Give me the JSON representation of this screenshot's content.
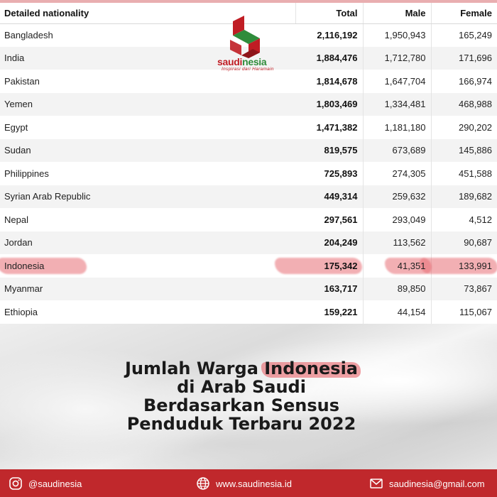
{
  "table": {
    "headers": {
      "name": "Detailed nationality",
      "total": "Total",
      "male": "Male",
      "female": "Female"
    },
    "rows": [
      {
        "name": "Bangladesh",
        "total": "2,116,192",
        "male": "1,950,943",
        "female": "165,249"
      },
      {
        "name": "India",
        "total": "1,884,476",
        "male": "1,712,780",
        "female": "171,696"
      },
      {
        "name": "Pakistan",
        "total": "1,814,678",
        "male": "1,647,704",
        "female": "166,974"
      },
      {
        "name": "Yemen",
        "total": "1,803,469",
        "male": "1,334,481",
        "female": "468,988"
      },
      {
        "name": "Egypt",
        "total": "1,471,382",
        "male": "1,181,180",
        "female": "290,202"
      },
      {
        "name": "Sudan",
        "total": "819,575",
        "male": "673,689",
        "female": "145,886"
      },
      {
        "name": "Philippines",
        "total": "725,893",
        "male": "274,305",
        "female": "451,588"
      },
      {
        "name": "Syrian Arab Republic",
        "total": "449,314",
        "male": "259,632",
        "female": "189,682"
      },
      {
        "name": "Nepal",
        "total": "297,561",
        "male": "293,049",
        "female": "4,512"
      },
      {
        "name": "Jordan",
        "total": "204,249",
        "male": "113,562",
        "female": "90,687"
      },
      {
        "name": "Indonesia",
        "total": "175,342",
        "male": "41,351",
        "female": "133,991"
      },
      {
        "name": "Myanmar",
        "total": "163,717",
        "male": "89,850",
        "female": "73,867"
      },
      {
        "name": "Ethiopia",
        "total": "159,221",
        "male": "44,154",
        "female": "115,067"
      }
    ]
  },
  "logo": {
    "name_part1": "saudi",
    "name_part2": "nesia",
    "tagline": "Inspirasi dari Haramain"
  },
  "banner": {
    "title_line1_prefix": "Jumlah Warga ",
    "title_line1_highlight": "Indonesia",
    "title_line2": "di Arab Saudi",
    "title_line3": "Berdasarkan Sensus",
    "title_line4": "Penduduk Terbaru 2022"
  },
  "footer": {
    "instagram": "@saudinesia",
    "website": "www.saudinesia.id",
    "email": "saudinesia@gmail.com"
  },
  "colors": {
    "brand_red": "#c01d24",
    "brand_green": "#2f8c3b",
    "footer_red": "#c0282c",
    "highlight": "#e86e74"
  }
}
